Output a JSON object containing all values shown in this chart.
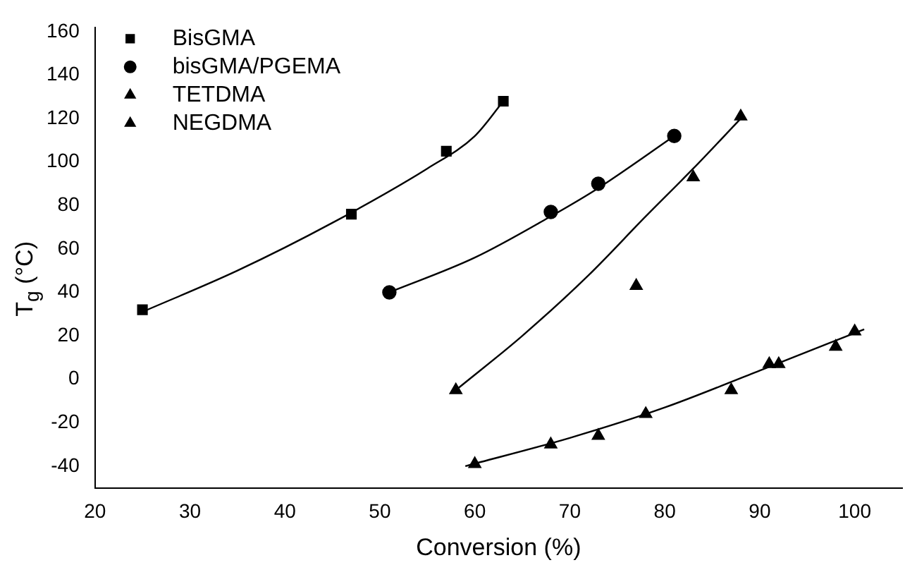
{
  "chart_data": {
    "type": "scatter",
    "xlabel": "Conversion (%)",
    "ylabel": "T$_{g}$ (°C)",
    "xlim": [
      20,
      105
    ],
    "xticks": [
      20,
      30,
      40,
      50,
      60,
      70,
      80,
      90,
      100
    ],
    "ylim": [
      -50,
      162
    ],
    "yticks": [
      -40,
      -20,
      0,
      20,
      40,
      60,
      80,
      100,
      120,
      140,
      160
    ],
    "legend": "top left",
    "grid": false,
    "series": [
      {
        "name": "BisGMA",
        "color": "#000000",
        "marker": "square",
        "x": [
          25,
          47,
          57,
          63
        ],
        "values": [
          32,
          76,
          105,
          128
        ]
      },
      {
        "name": "bisGMA/PGEMA",
        "color": "#000000",
        "marker": "circle",
        "x": [
          51,
          68,
          73,
          81
        ],
        "values": [
          40,
          77,
          90,
          112
        ]
      },
      {
        "name": "TETDMA",
        "color": "#000000",
        "marker": "triangle",
        "x": [
          58,
          77,
          83,
          88
        ],
        "values": [
          -5,
          43,
          93,
          121
        ]
      },
      {
        "name": "NEGDMA",
        "color": "#000000",
        "marker": "triangle",
        "x": [
          60,
          68,
          73,
          78,
          87,
          91,
          92,
          98,
          100
        ],
        "values": [
          -39,
          -30,
          -26,
          -16,
          -5,
          7,
          7,
          15,
          22
        ]
      },
      {
        "type": "line",
        "color": "#000000",
        "marker": "none",
        "x": [
          25,
          35,
          45,
          55,
          60,
          63
        ],
        "values": [
          31,
          50,
          72,
          97,
          112,
          128
        ]
      },
      {
        "type": "line",
        "color": "#000000",
        "marker": "none",
        "x": [
          51,
          60,
          68,
          73,
          81
        ],
        "values": [
          40,
          56,
          75,
          88,
          112
        ]
      },
      {
        "type": "line",
        "color": "#000000",
        "marker": "none",
        "x": [
          58,
          65,
          72,
          78,
          83,
          88
        ],
        "values": [
          -5,
          20,
          48,
          75,
          97,
          120
        ]
      },
      {
        "type": "line",
        "color": "#000000",
        "marker": "none",
        "x": [
          59,
          70,
          80,
          90,
          101
        ],
        "values": [
          -40,
          -27,
          -13,
          4,
          23
        ]
      }
    ]
  }
}
